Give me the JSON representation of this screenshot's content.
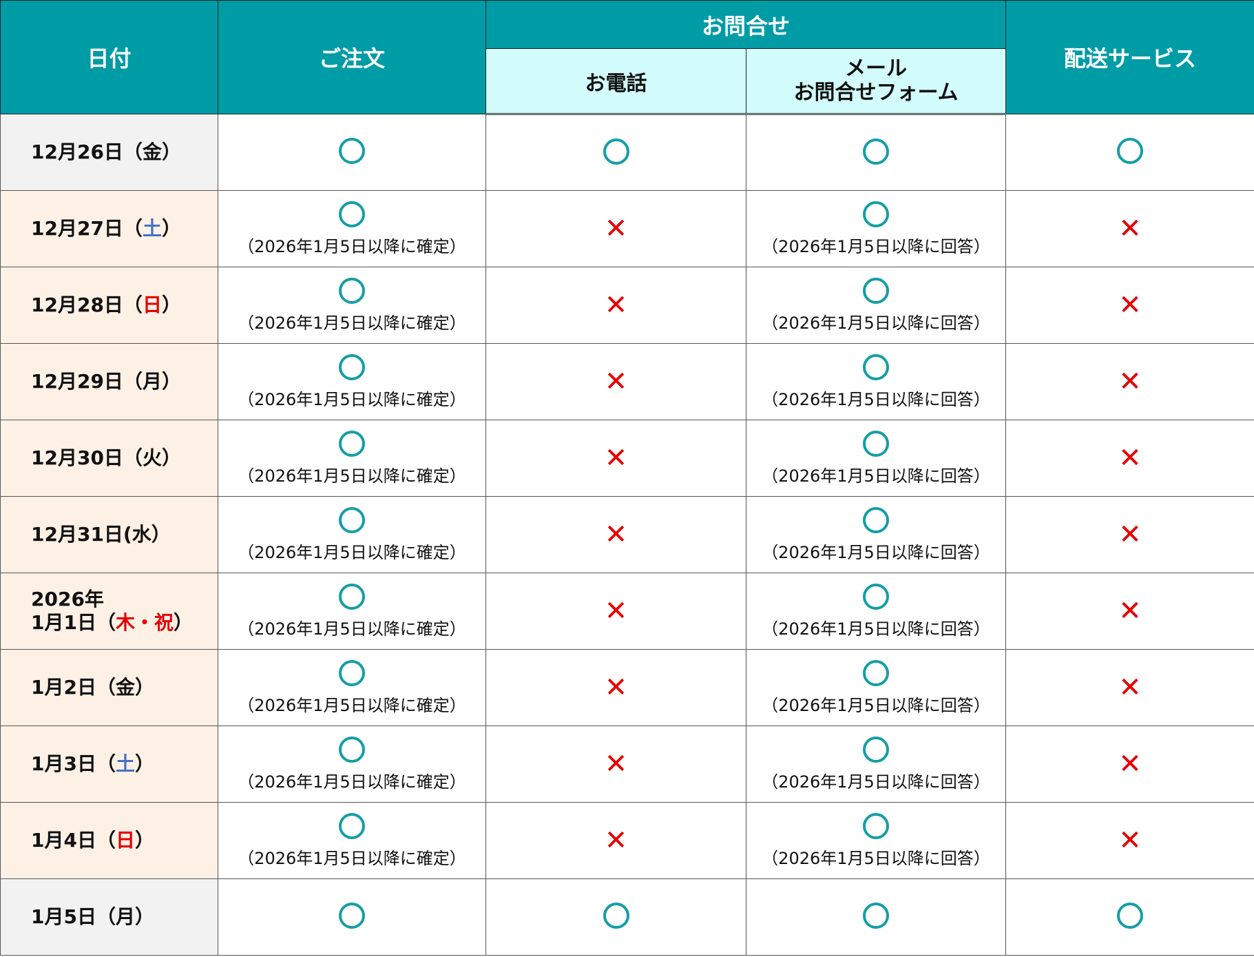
{
  "header": {
    "date": "日付",
    "order": "ご注文",
    "inquiry": "お問合せ",
    "phone": "お電話",
    "mail_line1": "メール",
    "mail_line2": "お問合せフォーム",
    "delivery": "配送サービス"
  },
  "colors": {
    "header": "#009ca6",
    "subheader": "#d3fcfc",
    "available": "#159ea6",
    "unavailable": "#e60000",
    "saturday": "#4472c4",
    "holiday": "#e60000"
  },
  "notes": {
    "order": "（2026年1月5日以降に確定）",
    "mail": "（2026年1月5日以降に回答）"
  },
  "rows": [
    {
      "date": "12月26日（",
      "day": "金",
      "close": "）",
      "day_color": "",
      "shade": "gray",
      "order": "ok",
      "order_note": false,
      "phone": "ok",
      "mail": "ok",
      "mail_note": false,
      "delivery": "ok"
    },
    {
      "date": "12月27日（",
      "day": "土",
      "close": "）",
      "day_color": "blue",
      "shade": "peach",
      "order": "ok",
      "order_note": true,
      "phone": "ng",
      "mail": "ok",
      "mail_note": true,
      "delivery": "ng"
    },
    {
      "date": "12月28日（",
      "day": "日",
      "close": "）",
      "day_color": "red",
      "shade": "peach",
      "order": "ok",
      "order_note": true,
      "phone": "ng",
      "mail": "ok",
      "mail_note": true,
      "delivery": "ng"
    },
    {
      "date": "12月29日（",
      "day": "月",
      "close": "）",
      "day_color": "",
      "shade": "peach",
      "order": "ok",
      "order_note": true,
      "phone": "ng",
      "mail": "ok",
      "mail_note": true,
      "delivery": "ng"
    },
    {
      "date": "12月30日（",
      "day": "火",
      "close": "）",
      "day_color": "",
      "shade": "peach",
      "order": "ok",
      "order_note": true,
      "phone": "ng",
      "mail": "ok",
      "mail_note": true,
      "delivery": "ng"
    },
    {
      "date": "12月31日(",
      "day": "水",
      "close": "）",
      "day_color": "",
      "shade": "peach",
      "order": "ok",
      "order_note": true,
      "phone": "ng",
      "mail": "ok",
      "mail_note": true,
      "delivery": "ng"
    },
    {
      "date_pre": "2026年",
      "date": "1月1日（",
      "day": "木・祝",
      "close": "）",
      "day_color": "red",
      "shade": "peach",
      "order": "ok",
      "order_note": true,
      "phone": "ng",
      "mail": "ok",
      "mail_note": true,
      "delivery": "ng"
    },
    {
      "date": "1月2日（",
      "day": "金",
      "close": "）",
      "day_color": "",
      "shade": "peach",
      "order": "ok",
      "order_note": true,
      "phone": "ng",
      "mail": "ok",
      "mail_note": true,
      "delivery": "ng"
    },
    {
      "date": "1月3日（",
      "day": "土",
      "close": "）",
      "day_color": "blue",
      "shade": "peach",
      "order": "ok",
      "order_note": true,
      "phone": "ng",
      "mail": "ok",
      "mail_note": true,
      "delivery": "ng"
    },
    {
      "date": "1月4日（",
      "day": "日",
      "close": "）",
      "day_color": "red",
      "shade": "peach",
      "order": "ok",
      "order_note": true,
      "phone": "ng",
      "mail": "ok",
      "mail_note": true,
      "delivery": "ng"
    },
    {
      "date": "1月5日（",
      "day": "月",
      "close": "）",
      "day_color": "",
      "shade": "gray",
      "order": "ok",
      "order_note": false,
      "phone": "ok",
      "mail": "ok",
      "mail_note": false,
      "delivery": "ok"
    }
  ]
}
